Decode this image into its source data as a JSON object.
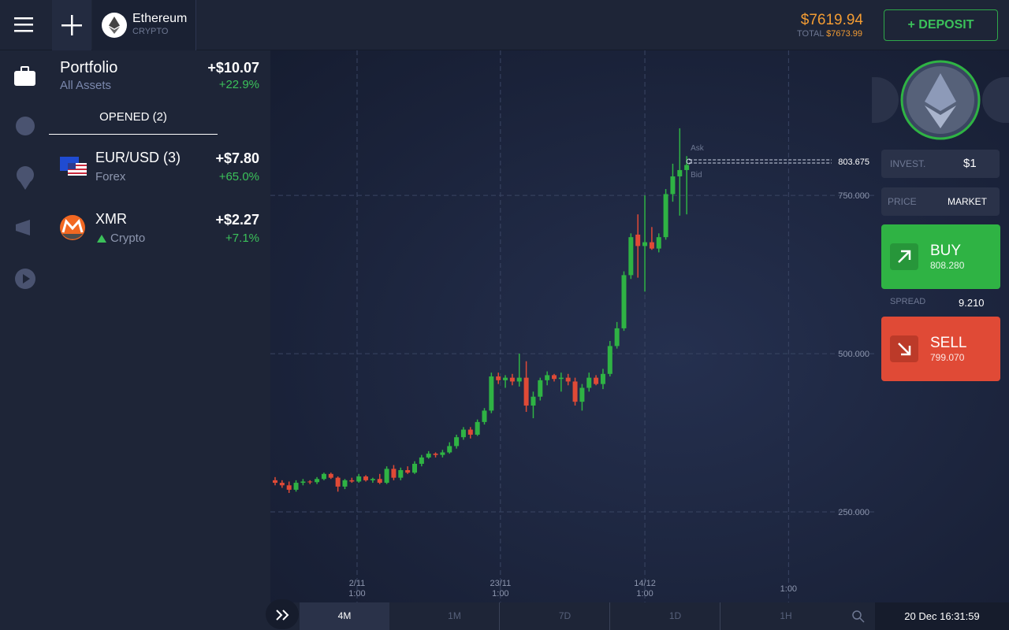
{
  "header": {
    "asset": "Ethereum",
    "asset_type": "CRYPTO",
    "balance": "$7619.94",
    "total_label": "TOTAL",
    "total": "$7673.99",
    "deposit": "+ DEPOSIT"
  },
  "portfolio": {
    "title": "Portfolio",
    "filter": "All Assets",
    "profit": "+$10.07",
    "profit_pct": "+22.9%",
    "tab": "OPENED (2)",
    "positions": [
      {
        "name": "EUR/USD (3)",
        "category": "Forex",
        "profit": "+$7.80",
        "pct": "+65.0%"
      },
      {
        "name": "XMR",
        "category": "Crypto",
        "profit": "+$2.27",
        "pct": "+7.1%"
      }
    ]
  },
  "chart": {
    "type": "candlestick",
    "ylim": [
      107,
      979
    ],
    "yticks": [
      {
        "value": 250,
        "label": "250.000"
      },
      {
        "value": 500,
        "label": "500.000"
      },
      {
        "value": 750,
        "label": "750.000"
      }
    ],
    "xticks": [
      {
        "value": 11.75,
        "label": [
          "2/11",
          "1:00"
        ]
      },
      {
        "value": 32.3,
        "label": [
          "23/11",
          "1:00"
        ]
      },
      {
        "value": 53,
        "label": [
          "14/12",
          "1:00"
        ]
      },
      {
        "value": 73.6,
        "label": [
          "1:00"
        ]
      }
    ],
    "up_color": "#2fb344",
    "down_color": "#e04a36",
    "current_price": 803.675,
    "ask_label": "Ask",
    "bid_label": "Bid",
    "ohlc": [
      [
        300,
        305,
        292,
        296
      ],
      [
        296,
        300,
        288,
        292
      ],
      [
        292,
        298,
        280,
        285
      ],
      [
        285,
        300,
        282,
        296
      ],
      [
        296,
        302,
        292,
        298
      ],
      [
        298,
        300,
        294,
        297
      ],
      [
        297,
        305,
        294,
        302
      ],
      [
        302,
        312,
        300,
        310
      ],
      [
        310,
        312,
        302,
        304
      ],
      [
        304,
        306,
        282,
        290
      ],
      [
        290,
        302,
        286,
        300
      ],
      [
        300,
        304,
        296,
        298
      ],
      [
        298,
        310,
        296,
        306
      ],
      [
        306,
        308,
        298,
        300
      ],
      [
        300,
        304,
        296,
        302
      ],
      [
        302,
        310,
        294,
        296
      ],
      [
        296,
        322,
        294,
        318
      ],
      [
        318,
        324,
        300,
        304
      ],
      [
        304,
        320,
        300,
        316
      ],
      [
        316,
        322,
        310,
        312
      ],
      [
        312,
        330,
        310,
        326
      ],
      [
        326,
        340,
        322,
        336
      ],
      [
        336,
        346,
        334,
        342
      ],
      [
        342,
        344,
        336,
        340
      ],
      [
        340,
        348,
        336,
        344
      ],
      [
        344,
        360,
        342,
        354
      ],
      [
        354,
        372,
        350,
        368
      ],
      [
        368,
        384,
        364,
        380
      ],
      [
        380,
        384,
        366,
        372
      ],
      [
        372,
        396,
        370,
        392
      ],
      [
        392,
        414,
        388,
        410
      ],
      [
        410,
        470,
        406,
        464
      ],
      [
        464,
        470,
        452,
        458
      ],
      [
        458,
        466,
        446,
        462
      ],
      [
        462,
        468,
        450,
        456
      ],
      [
        456,
        500,
        448,
        462
      ],
      [
        462,
        488,
        408,
        418
      ],
      [
        418,
        440,
        398,
        432
      ],
      [
        432,
        462,
        426,
        458
      ],
      [
        458,
        472,
        450,
        466
      ],
      [
        466,
        468,
        456,
        460
      ],
      [
        460,
        470,
        440,
        462
      ],
      [
        462,
        468,
        450,
        456
      ],
      [
        456,
        462,
        418,
        424
      ],
      [
        424,
        452,
        410,
        446
      ],
      [
        446,
        470,
        440,
        462
      ],
      [
        462,
        466,
        450,
        452
      ],
      [
        452,
        476,
        444,
        468
      ],
      [
        468,
        520,
        464,
        512
      ],
      [
        512,
        550,
        508,
        540
      ],
      [
        540,
        630,
        536,
        624
      ],
      [
        624,
        690,
        618,
        684
      ],
      [
        688,
        720,
        620,
        670
      ],
      [
        670,
        750,
        598,
        676
      ],
      [
        676,
        700,
        664,
        666
      ],
      [
        666,
        690,
        660,
        684
      ],
      [
        684,
        760,
        680,
        752
      ],
      [
        752,
        800,
        740,
        780
      ],
      [
        780,
        856,
        718,
        790
      ],
      [
        790,
        812,
        720,
        798
      ]
    ]
  },
  "trade": {
    "invest_label": "INVEST.",
    "invest": "$1",
    "price_label": "PRICE",
    "price_mode": "MARKET",
    "buy": "BUY",
    "buy_price": "808.280",
    "spread_label": "SPREAD",
    "spread": "9.210",
    "sell": "SELL",
    "sell_price": "799.070"
  },
  "footer": {
    "periods": [
      "4M",
      "1M",
      "7D",
      "1D",
      "1H"
    ],
    "datetime": "20 Dec 16:31:59"
  }
}
